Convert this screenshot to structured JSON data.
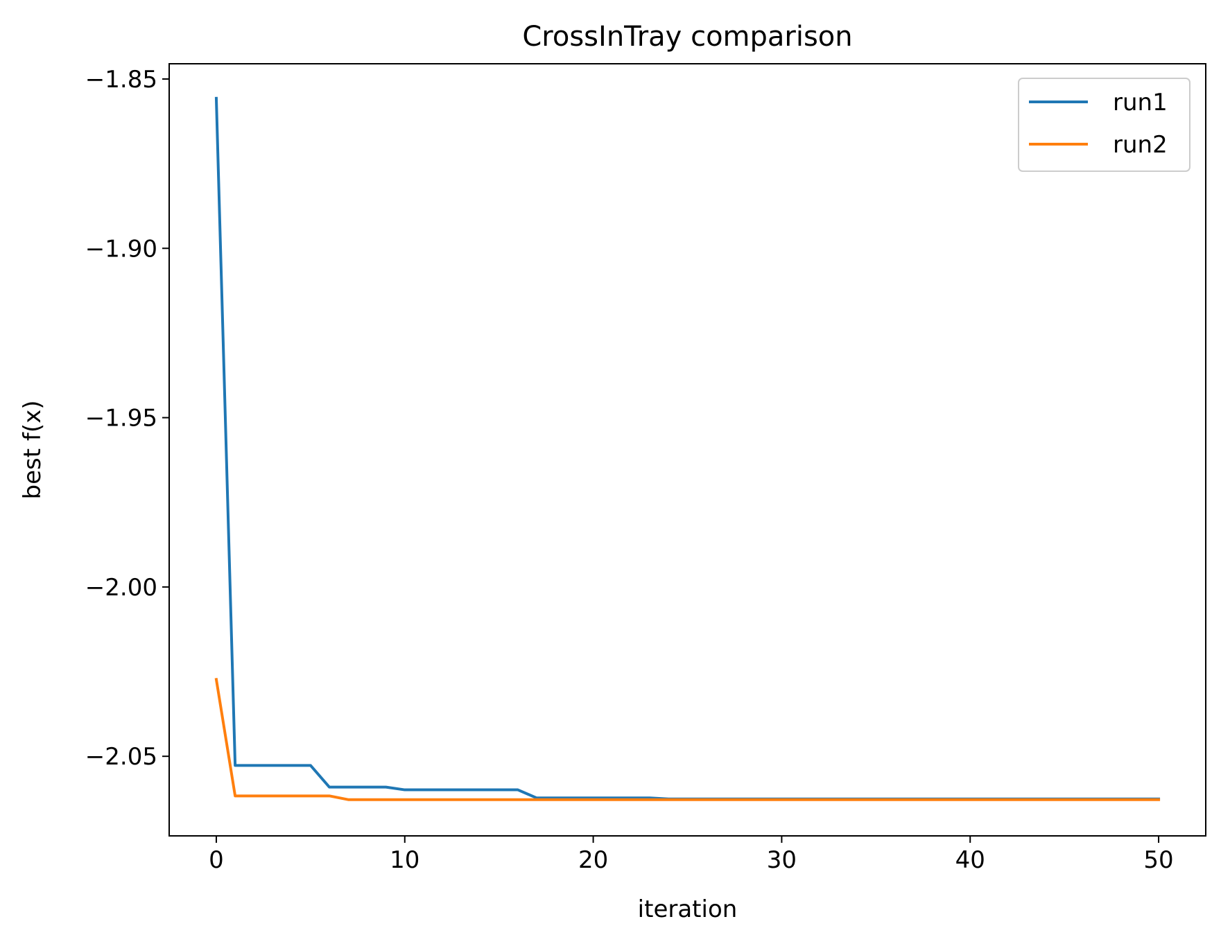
{
  "chart_data": {
    "type": "line",
    "title": "CrossInTray comparison",
    "xlabel": "iteration",
    "ylabel": "best f(x)",
    "xlim": [
      -2.5,
      52.5
    ],
    "ylim": [
      -2.0735,
      -1.8455
    ],
    "xticks": [
      0,
      10,
      20,
      30,
      40,
      50
    ],
    "xtick_labels": [
      "0",
      "10",
      "20",
      "30",
      "40",
      "50"
    ],
    "yticks": [
      -1.85,
      -1.9,
      -1.95,
      -2.0,
      -2.05
    ],
    "ytick_labels": [
      "−1.85",
      "−1.90",
      "−1.95",
      "−2.00",
      "−2.05"
    ],
    "grid": false,
    "legend_position": "top-right",
    "x": [
      0,
      1,
      2,
      3,
      4,
      5,
      6,
      7,
      8,
      9,
      10,
      11,
      12,
      13,
      14,
      15,
      16,
      17,
      18,
      19,
      20,
      21,
      22,
      23,
      24,
      25,
      26,
      27,
      28,
      29,
      30,
      31,
      32,
      33,
      34,
      35,
      36,
      37,
      38,
      39,
      40,
      41,
      42,
      43,
      44,
      45,
      46,
      47,
      48,
      49,
      50
    ],
    "series": [
      {
        "name": "run1",
        "color": "#1f77b4",
        "values": [
          -1.8557,
          -2.0527,
          -2.0527,
          -2.0527,
          -2.0527,
          -2.0527,
          -2.0591,
          -2.0591,
          -2.0591,
          -2.0591,
          -2.0599,
          -2.0599,
          -2.0599,
          -2.0599,
          -2.0599,
          -2.0599,
          -2.0599,
          -2.0623,
          -2.0623,
          -2.0623,
          -2.0623,
          -2.0623,
          -2.0623,
          -2.0623,
          -2.0626,
          -2.0626,
          -2.0626,
          -2.0626,
          -2.0626,
          -2.0626,
          -2.0626,
          -2.0626,
          -2.0626,
          -2.0626,
          -2.0626,
          -2.0626,
          -2.0626,
          -2.0626,
          -2.0626,
          -2.0626,
          -2.0626,
          -2.0626,
          -2.0626,
          -2.0626,
          -2.0626,
          -2.0626,
          -2.0626,
          -2.0626,
          -2.0626,
          -2.0626,
          -2.0626
        ]
      },
      {
        "name": "run2",
        "color": "#ff7f0e",
        "values": [
          -2.0273,
          -2.0617,
          -2.0617,
          -2.0617,
          -2.0617,
          -2.0617,
          -2.0617,
          -2.0628,
          -2.0628,
          -2.0628,
          -2.0628,
          -2.0628,
          -2.0628,
          -2.0628,
          -2.0628,
          -2.0628,
          -2.0628,
          -2.0628,
          -2.0628,
          -2.0628,
          -2.0628,
          -2.0628,
          -2.0628,
          -2.0628,
          -2.0628,
          -2.0628,
          -2.0628,
          -2.0628,
          -2.0628,
          -2.0628,
          -2.0628,
          -2.0628,
          -2.0628,
          -2.0628,
          -2.0628,
          -2.0628,
          -2.0628,
          -2.0628,
          -2.0628,
          -2.0628,
          -2.0628,
          -2.0628,
          -2.0628,
          -2.0628,
          -2.0628,
          -2.0628,
          -2.0628,
          -2.0628,
          -2.0628,
          -2.0628,
          -2.0628
        ]
      }
    ]
  }
}
